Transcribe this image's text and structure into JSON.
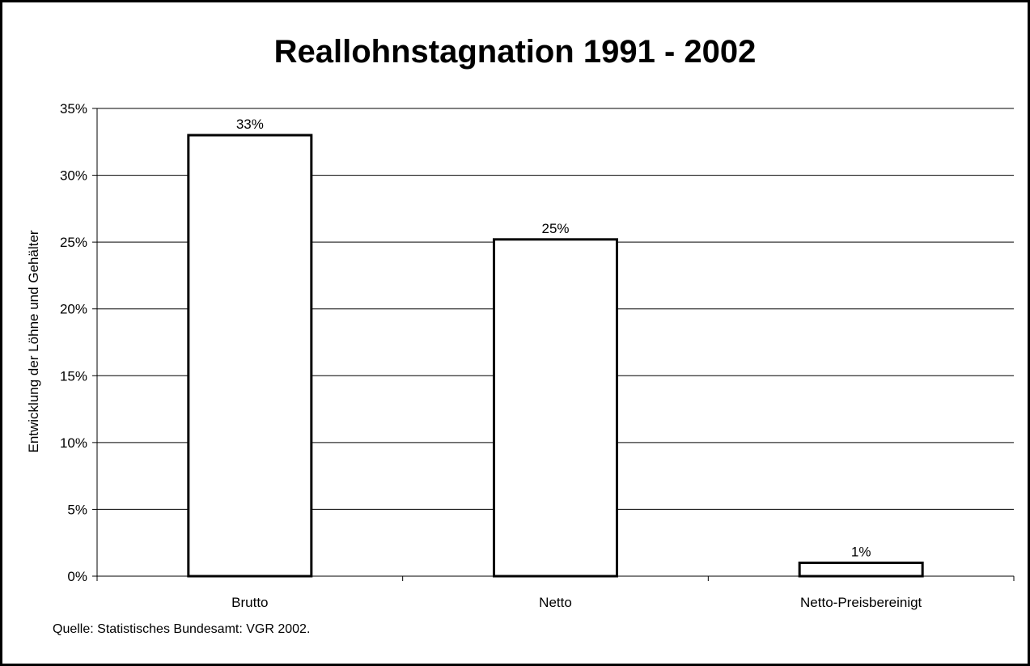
{
  "chart_data": {
    "type": "bar",
    "title": "Reallohnstagnation 1991 - 2002",
    "xlabel": "",
    "ylabel": "Entwicklung der Löhne und Gehälter",
    "categories": [
      "Brutto",
      "Netto",
      "Netto-Preisbereinigt"
    ],
    "values": [
      0.33,
      0.252,
      0.01
    ],
    "data_labels": [
      "33%",
      "25%",
      "1%"
    ],
    "ylim": [
      0,
      0.35
    ],
    "yticks": [
      0,
      0.05,
      0.1,
      0.15,
      0.2,
      0.25,
      0.3,
      0.35
    ],
    "ytick_labels": [
      "0%",
      "5%",
      "10%",
      "15%",
      "20%",
      "25%",
      "30%",
      "35%"
    ],
    "grid": true,
    "legend": "none",
    "bar_fill": "#ffffff",
    "bar_stroke": "#000000",
    "source_note": "Quelle: Statistisches Bundesamt: VGR 2002."
  }
}
